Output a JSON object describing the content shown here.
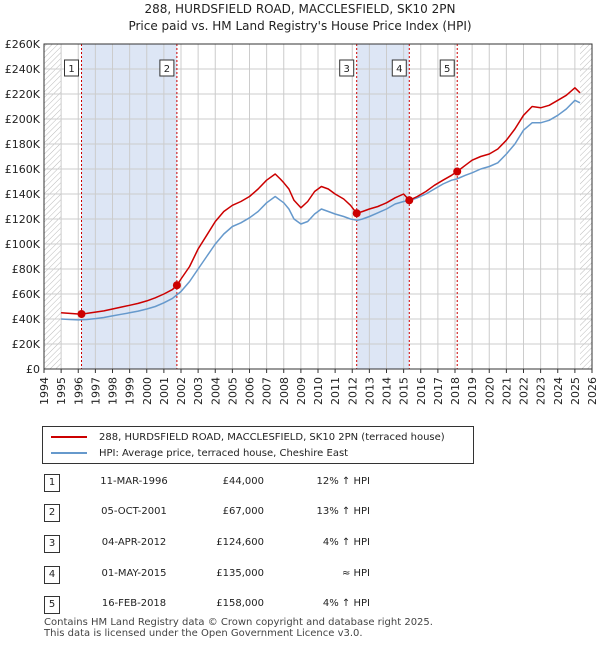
{
  "title_line1": "288, HURDSFIELD ROAD, MACCLESFIELD, SK10 2PN",
  "title_line2": "Price paid vs. HM Land Registry's House Price Index (HPI)",
  "colors": {
    "property": "#cc0000",
    "hpi": "#6699cc",
    "shade": "#dde6f5",
    "grid": "#cccccc"
  },
  "chart_data": {
    "type": "line",
    "ylim": [
      0,
      260000
    ],
    "xlim": [
      1994,
      2026
    ],
    "yticks": [
      {
        "value": 0,
        "label": "£0"
      },
      {
        "value": 20000,
        "label": "£20K"
      },
      {
        "value": 40000,
        "label": "£40K"
      },
      {
        "value": 60000,
        "label": "£60K"
      },
      {
        "value": 80000,
        "label": "£80K"
      },
      {
        "value": 100000,
        "label": "£100K"
      },
      {
        "value": 120000,
        "label": "£120K"
      },
      {
        "value": 140000,
        "label": "£140K"
      },
      {
        "value": 160000,
        "label": "£160K"
      },
      {
        "value": 180000,
        "label": "£180K"
      },
      {
        "value": 200000,
        "label": "£200K"
      },
      {
        "value": 220000,
        "label": "£220K"
      },
      {
        "value": 240000,
        "label": "£240K"
      },
      {
        "value": 260000,
        "label": "£260K"
      }
    ],
    "xticks": [
      "1994",
      "1995",
      "1996",
      "1997",
      "1998",
      "1999",
      "2000",
      "2001",
      "2002",
      "2003",
      "2004",
      "2005",
      "2006",
      "2007",
      "2008",
      "2009",
      "2010",
      "2011",
      "2012",
      "2013",
      "2014",
      "2015",
      "2016",
      "2017",
      "2018",
      "2019",
      "2020",
      "2021",
      "2022",
      "2023",
      "2024",
      "2025",
      "2026"
    ],
    "data_start_year": 1995,
    "series": [
      {
        "name": "288, HURDSFIELD ROAD, MACCLESFIELD, SK10 2PN (terraced house)",
        "points": [
          [
            1995.0,
            45000
          ],
          [
            1995.5,
            44500
          ],
          [
            1996.0,
            44000
          ],
          [
            1996.19,
            44000
          ],
          [
            1996.5,
            44500
          ],
          [
            1997.0,
            45500
          ],
          [
            1997.5,
            46500
          ],
          [
            1998.0,
            48000
          ],
          [
            1998.5,
            49500
          ],
          [
            1999.0,
            51000
          ],
          [
            1999.5,
            52500
          ],
          [
            2000.0,
            54500
          ],
          [
            2000.5,
            57000
          ],
          [
            2001.0,
            60000
          ],
          [
            2001.5,
            63500
          ],
          [
            2001.76,
            67000
          ],
          [
            2002.0,
            72000
          ],
          [
            2002.5,
            82000
          ],
          [
            2003.0,
            96000
          ],
          [
            2003.5,
            107000
          ],
          [
            2004.0,
            118000
          ],
          [
            2004.5,
            126000
          ],
          [
            2005.0,
            131000
          ],
          [
            2005.5,
            134000
          ],
          [
            2006.0,
            138000
          ],
          [
            2006.5,
            144000
          ],
          [
            2007.0,
            151000
          ],
          [
            2007.5,
            156000
          ],
          [
            2007.8,
            152000
          ],
          [
            2008.0,
            149000
          ],
          [
            2008.3,
            144000
          ],
          [
            2008.6,
            135000
          ],
          [
            2009.0,
            129000
          ],
          [
            2009.4,
            134000
          ],
          [
            2009.8,
            142000
          ],
          [
            2010.2,
            146000
          ],
          [
            2010.6,
            144000
          ],
          [
            2011.0,
            140000
          ],
          [
            2011.5,
            136000
          ],
          [
            2011.9,
            131000
          ],
          [
            2012.26,
            124600
          ],
          [
            2012.6,
            126000
          ],
          [
            2013.0,
            128000
          ],
          [
            2013.5,
            130000
          ],
          [
            2014.0,
            133000
          ],
          [
            2014.5,
            137000
          ],
          [
            2015.0,
            140000
          ],
          [
            2015.33,
            135000
          ],
          [
            2015.8,
            138000
          ],
          [
            2016.3,
            142000
          ],
          [
            2016.8,
            147000
          ],
          [
            2017.3,
            151000
          ],
          [
            2017.8,
            155000
          ],
          [
            2018.13,
            158000
          ],
          [
            2018.6,
            163000
          ],
          [
            2019.0,
            167000
          ],
          [
            2019.5,
            170000
          ],
          [
            2020.0,
            172000
          ],
          [
            2020.5,
            176000
          ],
          [
            2021.0,
            183000
          ],
          [
            2021.5,
            192000
          ],
          [
            2022.0,
            203000
          ],
          [
            2022.5,
            210000
          ],
          [
            2023.0,
            209000
          ],
          [
            2023.5,
            211000
          ],
          [
            2024.0,
            215000
          ],
          [
            2024.5,
            219000
          ],
          [
            2025.0,
            225000
          ],
          [
            2025.3,
            221000
          ]
        ]
      },
      {
        "name": "HPI: Average price, terraced house, Cheshire East",
        "points": [
          [
            1995.0,
            40000
          ],
          [
            1995.5,
            39600
          ],
          [
            1996.0,
            39300
          ],
          [
            1996.5,
            39600
          ],
          [
            1997.0,
            40300
          ],
          [
            1997.5,
            41200
          ],
          [
            1998.0,
            42500
          ],
          [
            1998.5,
            43800
          ],
          [
            1999.0,
            45000
          ],
          [
            1999.5,
            46300
          ],
          [
            2000.0,
            48000
          ],
          [
            2000.5,
            50000
          ],
          [
            2001.0,
            53000
          ],
          [
            2001.5,
            56500
          ],
          [
            2002.0,
            62000
          ],
          [
            2002.5,
            70000
          ],
          [
            2003.0,
            80000
          ],
          [
            2003.5,
            90000
          ],
          [
            2004.0,
            100000
          ],
          [
            2004.5,
            108000
          ],
          [
            2005.0,
            114000
          ],
          [
            2005.5,
            117000
          ],
          [
            2006.0,
            121000
          ],
          [
            2006.5,
            126000
          ],
          [
            2007.0,
            133000
          ],
          [
            2007.5,
            138000
          ],
          [
            2007.8,
            135000
          ],
          [
            2008.0,
            133000
          ],
          [
            2008.3,
            128000
          ],
          [
            2008.6,
            120000
          ],
          [
            2009.0,
            116000
          ],
          [
            2009.4,
            118000
          ],
          [
            2009.8,
            124000
          ],
          [
            2010.2,
            128000
          ],
          [
            2010.6,
            126000
          ],
          [
            2011.0,
            124000
          ],
          [
            2011.5,
            122000
          ],
          [
            2011.9,
            120000
          ],
          [
            2012.3,
            119000
          ],
          [
            2012.6,
            120000
          ],
          [
            2013.0,
            122000
          ],
          [
            2013.5,
            125000
          ],
          [
            2014.0,
            128000
          ],
          [
            2014.5,
            132000
          ],
          [
            2015.0,
            134000
          ],
          [
            2015.4,
            135000
          ],
          [
            2015.8,
            137000
          ],
          [
            2016.3,
            140000
          ],
          [
            2016.8,
            144000
          ],
          [
            2017.3,
            148000
          ],
          [
            2017.8,
            151000
          ],
          [
            2018.1,
            152000
          ],
          [
            2018.6,
            155000
          ],
          [
            2019.0,
            157000
          ],
          [
            2019.5,
            160000
          ],
          [
            2020.0,
            162000
          ],
          [
            2020.5,
            165000
          ],
          [
            2021.0,
            172000
          ],
          [
            2021.5,
            180000
          ],
          [
            2022.0,
            191000
          ],
          [
            2022.5,
            197000
          ],
          [
            2023.0,
            197000
          ],
          [
            2023.5,
            199000
          ],
          [
            2024.0,
            203000
          ],
          [
            2024.5,
            208000
          ],
          [
            2025.0,
            215000
          ],
          [
            2025.3,
            213000
          ]
        ]
      }
    ],
    "sales": [
      {
        "num": "1",
        "x": 1996.19,
        "y": 44000
      },
      {
        "num": "2",
        "x": 2001.76,
        "y": 67000
      },
      {
        "num": "3",
        "x": 2012.26,
        "y": 124600
      },
      {
        "num": "4",
        "x": 2015.33,
        "y": 135000
      },
      {
        "num": "5",
        "x": 2018.13,
        "y": 158000
      }
    ]
  },
  "legend": {
    "property_label": "288, HURDSFIELD ROAD, MACCLESFIELD, SK10 2PN (terraced house)",
    "hpi_label": "HPI: Average price, terraced house, Cheshire East"
  },
  "sales_table": [
    {
      "num": "1",
      "date": "11-MAR-1996",
      "price": "£44,000",
      "hpi": "12% ↑ HPI"
    },
    {
      "num": "2",
      "date": "05-OCT-2001",
      "price": "£67,000",
      "hpi": "13% ↑ HPI"
    },
    {
      "num": "3",
      "date": "04-APR-2012",
      "price": "£124,600",
      "hpi": "4% ↑ HPI"
    },
    {
      "num": "4",
      "date": "01-MAY-2015",
      "price": "£135,000",
      "hpi": "≈ HPI"
    },
    {
      "num": "5",
      "date": "16-FEB-2018",
      "price": "£158,000",
      "hpi": "4% ↑ HPI"
    }
  ],
  "footer_line1": "Contains HM Land Registry data © Crown copyright and database right 2025.",
  "footer_line2": "This data is licensed under the Open Government Licence v3.0."
}
